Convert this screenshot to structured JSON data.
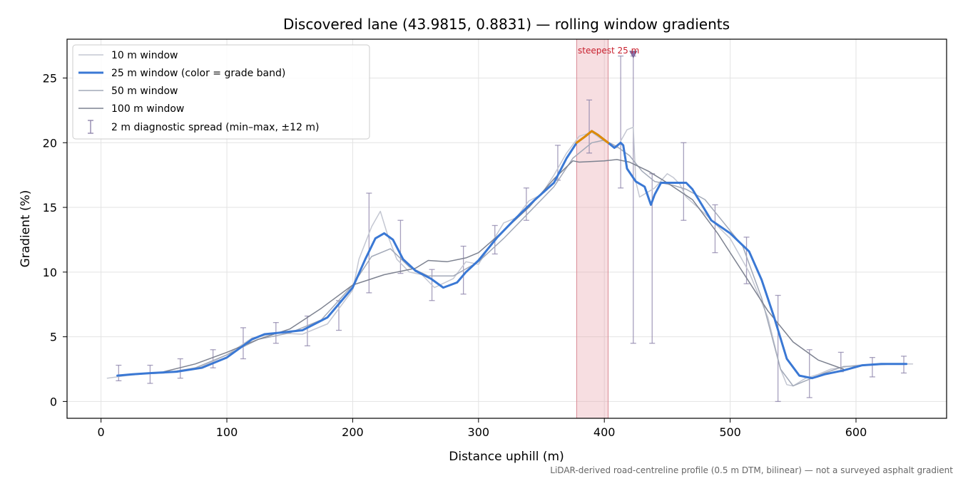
{
  "chart_data": {
    "type": "line",
    "title": "Discovered lane (43.9815, 0.8831) — rolling window gradients",
    "xlabel": "Distance uphill (m)",
    "ylabel": "Gradient (%)",
    "xlim": [
      -27,
      672
    ],
    "ylim": [
      -1.3,
      28.0
    ],
    "xticks": [
      0,
      100,
      200,
      300,
      400,
      500,
      600
    ],
    "yticks": [
      0,
      5,
      10,
      15,
      20,
      25
    ],
    "grid": true,
    "legend_position": "top-left",
    "footnote": "LiDAR-derived road-centreline profile (0.5 m DTM, bilinear) — not a surveyed asphalt gradient",
    "steepest_band": {
      "label": "steepest 25 m",
      "x_start": 378,
      "x_end": 403,
      "marker_x": 423,
      "marker_y": 26.8
    },
    "series": [
      {
        "name": "10 m window",
        "color": "#c4c7d2",
        "x": [
          5,
          20,
          40,
          60,
          80,
          100,
          120,
          140,
          160,
          180,
          200,
          205,
          215,
          222,
          228,
          235,
          245,
          255,
          265,
          280,
          290,
          300,
          310,
          320,
          330,
          340,
          350,
          360,
          370,
          380,
          390,
          400,
          410,
          418,
          423,
          425,
          428,
          440,
          450,
          455,
          460,
          465,
          480,
          500,
          515,
          530,
          540,
          545,
          550,
          560,
          570,
          580,
          600,
          620,
          645
        ],
        "y": [
          1.8,
          2.0,
          2.2,
          2.3,
          2.7,
          3.6,
          4.9,
          5.3,
          5.2,
          6.0,
          8.6,
          11.0,
          13.5,
          14.7,
          12.8,
          11.0,
          10.0,
          9.8,
          8.8,
          9.5,
          10.8,
          10.6,
          12.2,
          13.8,
          14.2,
          15.5,
          16.0,
          17.5,
          19.2,
          20.5,
          20.8,
          20.1,
          19.6,
          21.0,
          21.2,
          17.0,
          15.8,
          16.5,
          17.6,
          17.3,
          16.8,
          15.8,
          14.5,
          12.6,
          10.0,
          6.5,
          2.5,
          1.3,
          1.2,
          1.8,
          2.1,
          2.5,
          2.8,
          2.9,
          2.9
        ]
      },
      {
        "name": "25 m window (color = grade band)",
        "color": "#3a78d4",
        "steep_color": "#e08a00",
        "x": [
          13,
          25,
          40,
          60,
          80,
          100,
          120,
          130,
          140,
          160,
          180,
          200,
          210,
          218,
          225,
          232,
          240,
          250,
          262,
          272,
          283,
          290,
          300,
          315,
          330,
          345,
          360,
          370,
          378,
          385,
          390,
          395,
          403,
          408,
          413,
          415,
          418,
          425,
          432,
          437,
          440,
          445,
          455,
          465,
          470,
          475,
          485,
          500,
          515,
          525,
          535,
          545,
          555,
          565,
          575,
          590,
          605,
          620,
          640
        ],
        "y": [
          2.0,
          2.1,
          2.2,
          2.3,
          2.6,
          3.4,
          4.8,
          5.2,
          5.3,
          5.5,
          6.5,
          8.8,
          11.0,
          12.6,
          13.0,
          12.5,
          11.0,
          10.1,
          9.5,
          8.8,
          9.2,
          10.0,
          10.9,
          12.7,
          14.2,
          15.6,
          16.9,
          18.8,
          20.0,
          20.5,
          20.9,
          20.6,
          20.0,
          19.6,
          20.0,
          19.8,
          18.0,
          17.0,
          16.6,
          15.2,
          16.0,
          16.9,
          16.9,
          16.9,
          16.4,
          15.6,
          14.0,
          13.0,
          11.6,
          9.4,
          6.5,
          3.3,
          2.0,
          1.8,
          2.1,
          2.4,
          2.8,
          2.9,
          2.9
        ]
      },
      {
        "name": "50 m window",
        "color": "#a2a9b8",
        "x": [
          25,
          50,
          75,
          100,
          125,
          150,
          175,
          200,
          215,
          230,
          245,
          260,
          280,
          300,
          320,
          340,
          360,
          375,
          390,
          400,
          410,
          420,
          430,
          440,
          455,
          465,
          480,
          495,
          510,
          525,
          540,
          550,
          560,
          575,
          590,
          610,
          630
        ],
        "y": [
          2.1,
          2.2,
          2.6,
          3.6,
          4.8,
          5.3,
          6.3,
          9.0,
          11.2,
          11.8,
          10.4,
          9.7,
          9.7,
          10.8,
          12.6,
          14.6,
          16.6,
          18.8,
          20.0,
          20.2,
          19.7,
          19.0,
          17.8,
          17.0,
          16.7,
          16.4,
          15.6,
          13.8,
          12.0,
          8.0,
          2.5,
          1.2,
          1.6,
          2.2,
          2.7,
          2.8,
          2.9
        ]
      },
      {
        "name": "100 m window",
        "color": "#7d8290",
        "x": [
          50,
          75,
          100,
          125,
          150,
          175,
          200,
          225,
          250,
          260,
          275,
          290,
          300,
          320,
          340,
          360,
          375,
          380,
          400,
          410,
          420,
          435,
          450,
          470,
          490,
          510,
          530,
          550,
          570,
          590
        ],
        "y": [
          2.3,
          2.9,
          3.8,
          4.8,
          5.6,
          7.2,
          9.0,
          9.8,
          10.3,
          10.9,
          10.8,
          11.1,
          11.5,
          13.2,
          15.0,
          17.2,
          18.6,
          18.5,
          18.6,
          18.7,
          18.5,
          17.8,
          16.9,
          15.6,
          13.0,
          10.0,
          7.0,
          4.6,
          3.2,
          2.5
        ]
      }
    ],
    "error_bars": {
      "name": "2 m diagnostic spread (min–max, ±12 m)",
      "color": "#8a80a8",
      "x": [
        14,
        39,
        63,
        89,
        113,
        139,
        164,
        189,
        213,
        238,
        263,
        288,
        313,
        338,
        363,
        388,
        413,
        423,
        438,
        463,
        488,
        513,
        538,
        563,
        588,
        613,
        638
      ],
      "min": [
        1.6,
        1.4,
        1.8,
        2.6,
        3.3,
        4.5,
        4.3,
        5.5,
        8.4,
        9.9,
        7.8,
        8.3,
        11.4,
        14.0,
        17.1,
        19.2,
        16.5,
        4.5,
        4.5,
        14.0,
        11.5,
        9.1,
        0.0,
        0.3,
        2.3,
        1.9,
        2.2
      ],
      "max": [
        2.8,
        2.8,
        3.3,
        4.0,
        5.7,
        6.1,
        6.6,
        7.8,
        16.1,
        14.0,
        10.2,
        12.0,
        13.6,
        16.5,
        19.8,
        23.3,
        26.7,
        26.7,
        17.6,
        20.0,
        15.2,
        12.7,
        8.2,
        4.0,
        3.8,
        3.4,
        3.5
      ]
    }
  }
}
